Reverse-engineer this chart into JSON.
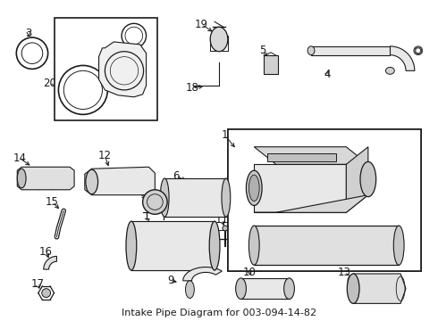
{
  "title": "Intake Pipe Diagram for 003-094-14-82",
  "bg": "#ffffff",
  "lc": "#1a1a1a",
  "fig_w": 4.9,
  "fig_h": 3.6,
  "dpi": 100,
  "fs": 8.5
}
